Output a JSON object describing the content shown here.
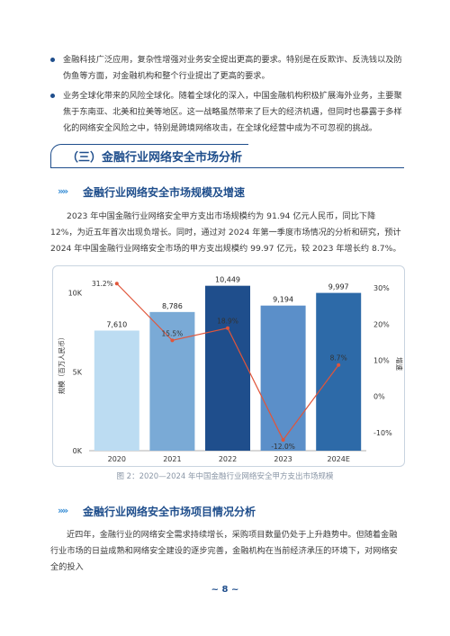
{
  "bullets": [
    {
      "text": "金融科技广泛应用，复杂性增强对业务安全提出更高的要求。特别是在反欺诈、反洗钱以及防伪鱼等方面，对金融机构和整个行业提出了更高的要求。"
    },
    {
      "text": "业务全球化带来的风险全球化。随着全球化的深入，中国金融机构积极扩展海外业务，主要聚焦于东南亚、北美和拉美等地区。这一战略虽然带来了巨大的经济机遇，但同时也暴露于多样化的网络安全风险之中，特别是跨境网络攻击，在全球化经营中成为不可忽视的挑战。"
    }
  ],
  "section": {
    "title": "（三）金融行业网络安全市场分析"
  },
  "sub1": {
    "arrows": "»»",
    "title": "金融行业网络安全市场规模及增速"
  },
  "para1": "2023 年中国金融行业网络安全甲方支出市场规模约为 91.94 亿元人民币，同比下降 12%，为近五年首次出现负增长。同时，通过对 2024 年第一季度市场情况的分析和研究，预计 2024 年中国金融行业网络安全市场的甲方支出规模约 99.97 亿元，较 2023 年增长约 8.7%。",
  "chart_data": {
    "type": "bar",
    "categories": [
      "2020",
      "2021",
      "2022",
      "2023",
      "2024E"
    ],
    "values": [
      7610,
      8786,
      10449,
      9194,
      9997
    ],
    "value_labels": [
      "7,610",
      "8,786",
      "10,449",
      "9,194",
      "9,997"
    ],
    "bar_colors": [
      "#bcdcf2",
      "#7aaad6",
      "#1f4e8c",
      "#5b8fc9",
      "#2d6aa8"
    ],
    "growth": [
      31.2,
      15.5,
      18.9,
      -12.0,
      8.7
    ],
    "growth_labels": [
      "31.2%",
      "15.5%",
      "18.9%",
      "-12.0%",
      "8.7%"
    ],
    "growth_color": "#e0553a",
    "ylabel": "规模（百万人民币）",
    "y2label": "增速",
    "ylim": [
      0,
      11000
    ],
    "y_ticks": [
      0,
      5000,
      10000
    ],
    "y_tick_labels": [
      "0K",
      "5K",
      "10K"
    ],
    "y2lim": [
      -15,
      33
    ],
    "y2_ticks": [
      -10,
      0,
      10,
      20,
      30
    ],
    "y2_tick_labels": [
      "-10%",
      "0%",
      "10%",
      "20%",
      "30%"
    ]
  },
  "caption": "图 2：2020—2024 年中国金融行业网络安全甲方支出市场规模",
  "sub2": {
    "arrows": "»»",
    "title": "金融行业网络安全市场项目情况分析"
  },
  "para2": "近四年，金融行业的网络安全需求持续增长，采购项目数量仍处于上升趋势中。但随着金融行业市场的日益成熟和网络安全建设的逐步完善，金融机构在当前经济承压的环境下，对网络安全的投入",
  "footer": "~ 8 ~"
}
